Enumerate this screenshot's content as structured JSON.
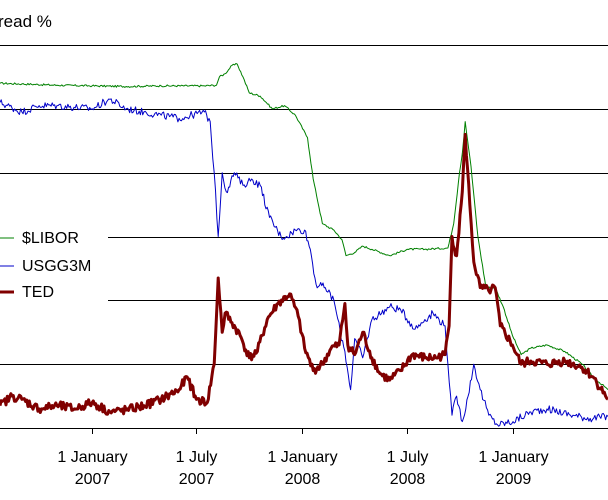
{
  "chart_data": {
    "type": "line",
    "title": "read %",
    "xlabel": "",
    "ylabel": "",
    "x_ticks": [
      {
        "date": "2007-01-01",
        "line1": "1 January",
        "line2": "2007"
      },
      {
        "date": "2007-07-01",
        "line1": "1 July",
        "line2": "2007"
      },
      {
        "date": "2008-01-01",
        "line1": "1 January",
        "line2": "2008"
      },
      {
        "date": "2008-07-01",
        "line1": "1 July",
        "line2": "2008"
      },
      {
        "date": "2009-01-01",
        "line1": "1 January",
        "line2": "2009"
      }
    ],
    "xlim": [
      "2006-07-25",
      "2009-06-15"
    ],
    "ylim": [
      0,
      6
    ],
    "y_gridlines": [
      0,
      1,
      2,
      3,
      4,
      5,
      6
    ],
    "grid": true,
    "legend_position": "left-middle",
    "series": [
      {
        "name": "$LIBOR",
        "color": "#008000",
        "points": [
          [
            "2006-07-25",
            5.4
          ],
          [
            "2006-09-01",
            5.39
          ],
          [
            "2006-11-01",
            5.37
          ],
          [
            "2007-01-01",
            5.36
          ],
          [
            "2007-03-01",
            5.35
          ],
          [
            "2007-05-01",
            5.36
          ],
          [
            "2007-07-15",
            5.36
          ],
          [
            "2007-08-05",
            5.37
          ],
          [
            "2007-08-10",
            5.5
          ],
          [
            "2007-08-20",
            5.55
          ],
          [
            "2007-09-01",
            5.68
          ],
          [
            "2007-09-10",
            5.7
          ],
          [
            "2007-09-20",
            5.5
          ],
          [
            "2007-10-01",
            5.25
          ],
          [
            "2007-10-20",
            5.2
          ],
          [
            "2007-11-10",
            5.0
          ],
          [
            "2007-12-01",
            5.05
          ],
          [
            "2007-12-20",
            4.9
          ],
          [
            "2008-01-10",
            4.55
          ],
          [
            "2008-01-20",
            3.9
          ],
          [
            "2008-02-05",
            3.2
          ],
          [
            "2008-02-25",
            3.1
          ],
          [
            "2008-03-10",
            2.95
          ],
          [
            "2008-03-17",
            2.7
          ],
          [
            "2008-04-01",
            2.75
          ],
          [
            "2008-04-15",
            2.85
          ],
          [
            "2008-05-01",
            2.8
          ],
          [
            "2008-06-01",
            2.7
          ],
          [
            "2008-07-01",
            2.8
          ],
          [
            "2008-08-01",
            2.8
          ],
          [
            "2008-09-10",
            2.82
          ],
          [
            "2008-09-20",
            3.2
          ],
          [
            "2008-09-30",
            4.0
          ],
          [
            "2008-10-05",
            4.3
          ],
          [
            "2008-10-10",
            4.8
          ],
          [
            "2008-10-20",
            4.1
          ],
          [
            "2008-11-01",
            3.0
          ],
          [
            "2008-11-15",
            2.2
          ],
          [
            "2008-12-01",
            2.2
          ],
          [
            "2008-12-15",
            1.9
          ],
          [
            "2008-12-31",
            1.45
          ],
          [
            "2009-01-15",
            1.15
          ],
          [
            "2009-02-01",
            1.25
          ],
          [
            "2009-03-01",
            1.3
          ],
          [
            "2009-04-01",
            1.2
          ],
          [
            "2009-05-01",
            1.0
          ],
          [
            "2009-05-20",
            0.8
          ],
          [
            "2009-06-15",
            0.6
          ]
        ]
      },
      {
        "name": "USGG3M",
        "color": "#0000c8",
        "points": [
          [
            "2006-07-25",
            5.1
          ],
          [
            "2006-09-01",
            4.95
          ],
          [
            "2006-10-01",
            5.05
          ],
          [
            "2006-11-01",
            5.05
          ],
          [
            "2007-01-01",
            5.0
          ],
          [
            "2007-02-01",
            5.15
          ],
          [
            "2007-03-01",
            5.0
          ],
          [
            "2007-04-01",
            4.95
          ],
          [
            "2007-05-01",
            4.9
          ],
          [
            "2007-06-01",
            4.85
          ],
          [
            "2007-07-15",
            4.95
          ],
          [
            "2007-07-25",
            4.8
          ],
          [
            "2007-08-01",
            4.0
          ],
          [
            "2007-08-08",
            3.0
          ],
          [
            "2007-08-15",
            4.0
          ],
          [
            "2007-08-22",
            3.7
          ],
          [
            "2007-09-05",
            4.0
          ],
          [
            "2007-09-20",
            3.8
          ],
          [
            "2007-10-05",
            3.9
          ],
          [
            "2007-10-20",
            3.8
          ],
          [
            "2007-11-05",
            3.3
          ],
          [
            "2007-11-25",
            3.0
          ],
          [
            "2007-12-05",
            3.0
          ],
          [
            "2007-12-20",
            3.1
          ],
          [
            "2008-01-05",
            3.1
          ],
          [
            "2008-01-15",
            2.8
          ],
          [
            "2008-01-25",
            2.25
          ],
          [
            "2008-02-10",
            2.2
          ],
          [
            "2008-02-25",
            2.0
          ],
          [
            "2008-03-07",
            1.5
          ],
          [
            "2008-03-15",
            1.2
          ],
          [
            "2008-03-25",
            0.6
          ],
          [
            "2008-04-01",
            1.4
          ],
          [
            "2008-04-15",
            1.1
          ],
          [
            "2008-05-01",
            1.7
          ],
          [
            "2008-06-01",
            1.9
          ],
          [
            "2008-06-20",
            1.85
          ],
          [
            "2008-07-15",
            1.55
          ],
          [
            "2008-08-01",
            1.7
          ],
          [
            "2008-08-15",
            1.8
          ],
          [
            "2008-09-05",
            1.6
          ],
          [
            "2008-09-10",
            1.0
          ],
          [
            "2008-09-17",
            0.2
          ],
          [
            "2008-09-25",
            0.5
          ],
          [
            "2008-10-05",
            0.1
          ],
          [
            "2008-10-15",
            0.5
          ],
          [
            "2008-10-25",
            1.0
          ],
          [
            "2008-11-05",
            0.6
          ],
          [
            "2008-11-20",
            0.2
          ],
          [
            "2008-12-05",
            0.05
          ],
          [
            "2009-01-01",
            0.1
          ],
          [
            "2009-02-01",
            0.25
          ],
          [
            "2009-03-01",
            0.3
          ],
          [
            "2009-04-15",
            0.2
          ],
          [
            "2009-05-15",
            0.15
          ],
          [
            "2009-06-15",
            0.18
          ]
        ]
      },
      {
        "name": "TED",
        "color": "#800000",
        "points": [
          [
            "2006-07-25",
            0.35
          ],
          [
            "2006-08-15",
            0.5
          ],
          [
            "2006-09-01",
            0.45
          ],
          [
            "2006-10-01",
            0.3
          ],
          [
            "2006-11-01",
            0.35
          ],
          [
            "2006-12-01",
            0.3
          ],
          [
            "2007-01-01",
            0.4
          ],
          [
            "2007-02-01",
            0.25
          ],
          [
            "2007-03-01",
            0.28
          ],
          [
            "2007-04-01",
            0.35
          ],
          [
            "2007-05-01",
            0.45
          ],
          [
            "2007-06-01",
            0.6
          ],
          [
            "2007-06-15",
            0.8
          ],
          [
            "2007-07-01",
            0.45
          ],
          [
            "2007-07-20",
            0.4
          ],
          [
            "2007-08-01",
            1.0
          ],
          [
            "2007-08-08",
            2.35
          ],
          [
            "2007-08-15",
            1.5
          ],
          [
            "2007-08-20",
            1.8
          ],
          [
            "2007-09-01",
            1.65
          ],
          [
            "2007-09-15",
            1.45
          ],
          [
            "2007-10-01",
            1.1
          ],
          [
            "2007-10-15",
            1.2
          ],
          [
            "2007-11-01",
            1.7
          ],
          [
            "2007-11-20",
            1.95
          ],
          [
            "2007-12-10",
            2.1
          ],
          [
            "2007-12-25",
            1.75
          ],
          [
            "2008-01-05",
            1.25
          ],
          [
            "2008-01-20",
            0.9
          ],
          [
            "2008-02-05",
            1.0
          ],
          [
            "2008-02-20",
            1.25
          ],
          [
            "2008-03-05",
            1.3
          ],
          [
            "2008-03-15",
            1.95
          ],
          [
            "2008-03-20",
            1.3
          ],
          [
            "2008-04-01",
            1.15
          ],
          [
            "2008-04-15",
            1.5
          ],
          [
            "2008-05-01",
            1.1
          ],
          [
            "2008-05-15",
            0.85
          ],
          [
            "2008-06-01",
            0.75
          ],
          [
            "2008-06-20",
            0.9
          ],
          [
            "2008-07-10",
            1.15
          ],
          [
            "2008-08-01",
            1.1
          ],
          [
            "2008-08-20",
            1.1
          ],
          [
            "2008-09-05",
            1.15
          ],
          [
            "2008-09-12",
            1.6
          ],
          [
            "2008-09-17",
            3.0
          ],
          [
            "2008-09-25",
            2.7
          ],
          [
            "2008-10-05",
            3.7
          ],
          [
            "2008-10-10",
            4.6
          ],
          [
            "2008-10-18",
            3.5
          ],
          [
            "2008-10-25",
            2.6
          ],
          [
            "2008-11-05",
            2.2
          ],
          [
            "2008-11-20",
            2.15
          ],
          [
            "2008-12-01",
            2.2
          ],
          [
            "2008-12-10",
            1.6
          ],
          [
            "2008-12-31",
            1.3
          ],
          [
            "2009-01-15",
            1.0
          ],
          [
            "2009-02-01",
            1.05
          ],
          [
            "2009-03-01",
            1.0
          ],
          [
            "2009-04-01",
            1.05
          ],
          [
            "2009-05-01",
            0.95
          ],
          [
            "2009-05-20",
            0.8
          ],
          [
            "2009-06-15",
            0.45
          ]
        ]
      }
    ]
  }
}
